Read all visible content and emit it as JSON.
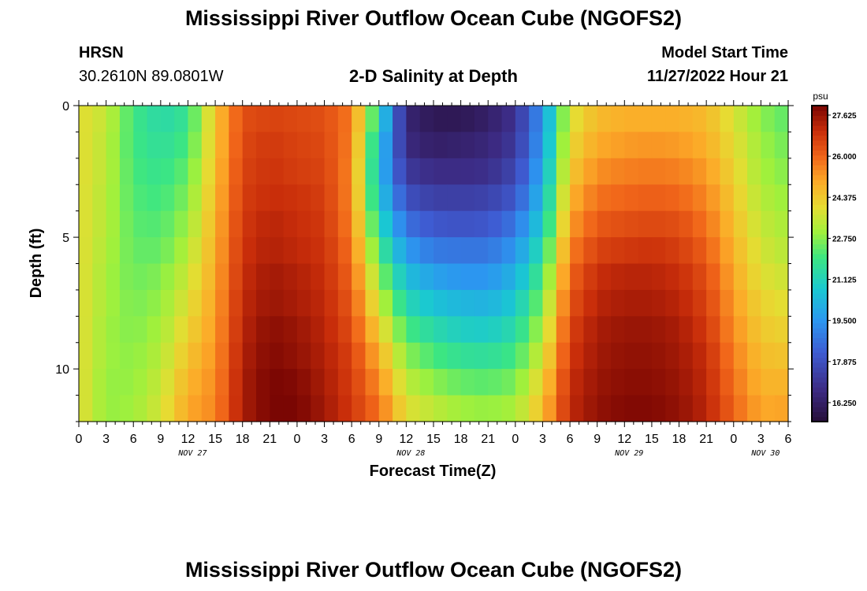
{
  "chart_data": {
    "type": "heatmap",
    "title": "Mississippi River Outflow Ocean Cube (NGOFS2)",
    "station": {
      "name": "HRSN",
      "coords": "30.2610N  89.0801W"
    },
    "plot_title": "2-D Salinity at Depth",
    "model_start": {
      "label": "Model Start Time",
      "value": "11/27/2022 Hour 21"
    },
    "xlabel": "Forecast Time(Z)",
    "ylabel": "Depth (ft)",
    "x_ticks": [
      "0",
      "3",
      "6",
      "9",
      "12",
      "15",
      "18",
      "21",
      "0",
      "3",
      "6",
      "9",
      "12",
      "15",
      "18",
      "21",
      "0",
      "3",
      "6",
      "9",
      "12",
      "15",
      "18",
      "21",
      "0",
      "3",
      "6"
    ],
    "x_tick_hours": [
      0,
      3,
      6,
      9,
      12,
      15,
      18,
      21,
      24,
      27,
      30,
      33,
      36,
      39,
      42,
      45,
      48,
      51,
      54,
      57,
      60,
      63,
      66,
      69,
      72,
      75,
      78
    ],
    "date_labels": [
      {
        "text": "NOV 27",
        "hour": 12
      },
      {
        "text": "NOV 28",
        "hour": 36
      },
      {
        "text": "NOV 29",
        "hour": 60
      },
      {
        "text": "NOV 30",
        "hour": 75
      }
    ],
    "x_range_hours": [
      0,
      78
    ],
    "y_ticks": [
      0,
      5,
      10
    ],
    "y_range": [
      0,
      12
    ],
    "colorbar": {
      "unit": "psu",
      "min": 15.5,
      "max": 28.0,
      "labels": [
        "27.625",
        "26.000",
        "24.375",
        "22.750",
        "21.125",
        "19.500",
        "17.875",
        "16.250"
      ],
      "label_values": [
        27.625,
        26.0,
        24.375,
        22.75,
        21.125,
        19.5,
        17.875,
        16.25
      ]
    },
    "grid": {
      "hours": [
        0,
        3,
        6,
        9,
        12,
        15,
        18,
        21,
        24,
        27,
        30,
        33,
        36,
        39,
        42,
        45,
        48,
        51,
        54,
        57,
        60,
        63,
        66,
        69,
        72,
        75,
        78
      ],
      "depths": [
        0,
        1,
        2,
        3,
        4,
        5,
        6,
        7,
        8,
        9,
        10,
        11,
        12
      ],
      "salinity_by_depth_row": [
        [
          24.0,
          23.5,
          22.0,
          21.4,
          21.8,
          24.5,
          26.4,
          26.6,
          26.5,
          26.4,
          25.7,
          21.3,
          16.5,
          16.0,
          16.0,
          16.3,
          17.0,
          19.5,
          23.8,
          24.7,
          24.9,
          24.9,
          24.9,
          24.7,
          23.8,
          22.8,
          22.3
        ],
        [
          24.0,
          23.4,
          22.0,
          21.6,
          22.1,
          24.5,
          26.5,
          26.8,
          26.6,
          26.5,
          25.6,
          20.7,
          16.7,
          16.3,
          16.4,
          16.6,
          17.2,
          19.7,
          24.1,
          25.0,
          25.2,
          25.3,
          25.2,
          24.9,
          24.0,
          23.0,
          22.5
        ],
        [
          24.0,
          23.4,
          22.1,
          21.8,
          22.4,
          24.6,
          26.6,
          26.9,
          26.7,
          26.6,
          25.5,
          20.5,
          17.2,
          16.8,
          16.8,
          16.9,
          17.6,
          20.0,
          24.4,
          25.4,
          25.6,
          25.7,
          25.6,
          25.2,
          24.2,
          23.1,
          22.7
        ],
        [
          24.0,
          23.3,
          22.2,
          22.0,
          22.7,
          24.7,
          26.7,
          27.0,
          26.9,
          26.7,
          25.5,
          20.8,
          17.9,
          17.4,
          17.4,
          17.5,
          18.1,
          20.4,
          24.8,
          25.8,
          26.0,
          26.1,
          26.0,
          25.5,
          24.4,
          23.3,
          22.9
        ],
        [
          24.0,
          23.3,
          22.3,
          22.2,
          23.0,
          24.8,
          26.8,
          27.2,
          27.0,
          26.8,
          25.6,
          21.4,
          18.7,
          18.1,
          18.0,
          18.1,
          18.8,
          20.9,
          25.2,
          26.2,
          26.4,
          26.5,
          26.4,
          25.8,
          24.6,
          23.5,
          23.1
        ],
        [
          24.0,
          23.2,
          22.4,
          22.4,
          23.3,
          24.9,
          26.9,
          27.3,
          27.1,
          26.9,
          25.8,
          22.1,
          19.6,
          18.9,
          18.8,
          18.8,
          19.5,
          21.5,
          25.6,
          26.6,
          26.8,
          26.9,
          26.7,
          26.1,
          24.8,
          23.7,
          23.3
        ],
        [
          24.0,
          23.1,
          22.5,
          22.7,
          23.6,
          25.0,
          27.0,
          27.5,
          27.3,
          27.0,
          26.0,
          22.9,
          20.5,
          19.8,
          19.5,
          19.5,
          20.2,
          22.1,
          26.0,
          27.0,
          27.2,
          27.2,
          27.0,
          26.4,
          25.0,
          23.9,
          23.6
        ],
        [
          24.0,
          23.1,
          22.6,
          22.9,
          23.9,
          25.1,
          27.1,
          27.6,
          27.4,
          27.1,
          26.2,
          23.6,
          21.3,
          20.6,
          20.3,
          20.2,
          20.8,
          22.7,
          26.3,
          27.2,
          27.4,
          27.4,
          27.2,
          26.6,
          25.2,
          24.2,
          23.9
        ],
        [
          24.0,
          23.0,
          22.7,
          23.1,
          24.2,
          25.2,
          27.2,
          27.8,
          27.6,
          27.2,
          26.4,
          24.3,
          22.1,
          21.4,
          21.0,
          20.9,
          21.4,
          23.2,
          26.6,
          27.4,
          27.6,
          27.6,
          27.4,
          26.8,
          25.4,
          24.4,
          24.2
        ],
        [
          24.0,
          23.0,
          22.8,
          23.3,
          24.5,
          25.3,
          27.3,
          27.9,
          27.7,
          27.3,
          26.6,
          24.9,
          22.8,
          22.1,
          21.7,
          21.6,
          22.0,
          23.7,
          26.8,
          27.5,
          27.7,
          27.7,
          27.5,
          27.0,
          25.6,
          24.6,
          24.5
        ],
        [
          24.0,
          22.9,
          22.9,
          23.5,
          24.8,
          25.4,
          27.4,
          28.0,
          27.9,
          27.4,
          26.7,
          25.4,
          23.4,
          22.8,
          22.4,
          22.3,
          22.6,
          24.2,
          27.0,
          27.6,
          27.8,
          27.8,
          27.6,
          27.1,
          25.8,
          24.8,
          24.8
        ],
        [
          24.0,
          22.9,
          23.0,
          23.7,
          25.0,
          25.5,
          27.4,
          28.0,
          28.0,
          27.5,
          26.8,
          25.8,
          23.9,
          23.4,
          23.0,
          22.9,
          23.1,
          24.6,
          27.1,
          27.7,
          27.9,
          27.9,
          27.7,
          27.2,
          26.0,
          25.0,
          25.1
        ]
      ]
    },
    "bottom_title": "Mississippi River Outflow Ocean Cube (NGOFS2)"
  }
}
